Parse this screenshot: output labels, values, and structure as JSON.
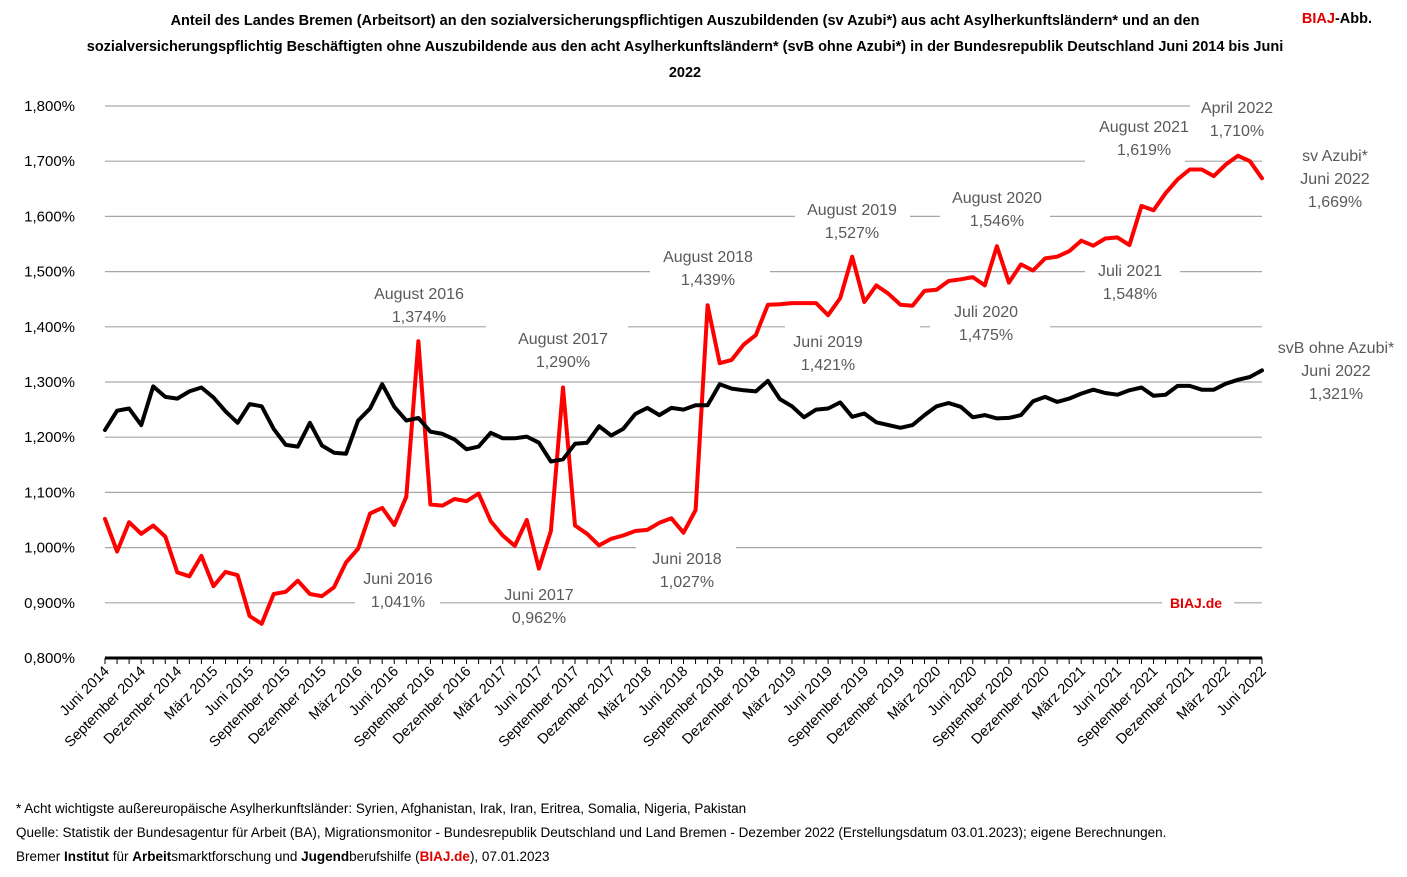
{
  "title": "Anteil des Landes Bremen (Arbeitsort) an den sozialversicherungspflichtigen Auszubildenden (sv Azubi*) aus acht Asylherkunftsländern* und an den sozialversicherungspflichtig Beschäftigten ohne Auszubildende aus den acht Asylherkunftsländern* (svB ohne Azubi*) in der Bundesrepublik Deutschland Juni 2014 bis Juni 2022",
  "brand": {
    "red": "BIAJ",
    "rest": "-Abb."
  },
  "watermark": "BIAJ.de",
  "footnotes": {
    "line1": "* Acht wichtigste außereuropäische Asylherkunftsländer: Syrien, Afghanistan, Irak, Iran, Eritrea, Somalia, Nigeria, Pakistan",
    "line2": "Quelle: Statistik der Bundesagentur für Arbeit (BA), Migrationsmonitor - Bundesrepublik Deutschland und Land Bremen - Dezember 2022 (Erstellungsdatum 03.01.2023); eigene Berechnungen.",
    "line3_parts": [
      "Bremer ",
      "Institut",
      " für ",
      "Arbeit",
      "smarktforschung und ",
      "Jugend",
      "berufshilfe (",
      "BIAJ.de",
      "), 07.01.2023"
    ]
  },
  "colors": {
    "azubi": "#ff0000",
    "svb": "#000000",
    "grid": "#a6a6a6",
    "brand": "#e00000"
  },
  "chart_data": {
    "type": "line",
    "ylim": [
      0.8,
      1.8
    ],
    "yticks": [
      "0,800%",
      "0,900%",
      "1,000%",
      "1,100%",
      "1,200%",
      "1,300%",
      "1,400%",
      "1,500%",
      "1,600%",
      "1,700%",
      "1,800%"
    ],
    "x_labels": [
      "Juni 2014",
      "September 2014",
      "Dezember 2014",
      "März 2015",
      "Juni 2015",
      "September 2015",
      "Dezember 2015",
      "März 2016",
      "Juni 2016",
      "September 2016",
      "Dezember 2016",
      "März 2017",
      "Juni 2017",
      "September 2017",
      "Dezember 2017",
      "März 2018",
      "Juni 2018",
      "September 2018",
      "Dezember 2018",
      "März 2019",
      "Juni 2019",
      "September 2019",
      "Dezember 2019",
      "März 2020",
      "Juni 2020",
      "September 2020",
      "Dezember 2020",
      "März 2021",
      "Juni 2021",
      "September 2021",
      "Dezember 2021",
      "März 2022",
      "Juni 2022"
    ],
    "series": [
      {
        "name": "sv Azubi*",
        "color": "#ff0000",
        "values": [
          1.052,
          0.993,
          1.046,
          1.025,
          1.04,
          1.02,
          0.955,
          0.948,
          0.985,
          0.93,
          0.956,
          0.95,
          0.876,
          0.862,
          0.916,
          0.92,
          0.94,
          0.916,
          0.912,
          0.928,
          0.973,
          0.998,
          1.062,
          1.072,
          1.041,
          1.092,
          1.374,
          1.078,
          1.076,
          1.088,
          1.084,
          1.098,
          1.048,
          1.022,
          1.003,
          1.05,
          0.962,
          1.03,
          1.29,
          1.04,
          1.025,
          1.004,
          1.016,
          1.022,
          1.03,
          1.032,
          1.045,
          1.053,
          1.027,
          1.068,
          1.439,
          1.334,
          1.34,
          1.368,
          1.385,
          1.44,
          1.441,
          1.443,
          1.443,
          1.443,
          1.421,
          1.452,
          1.527,
          1.445,
          1.475,
          1.46,
          1.44,
          1.438,
          1.465,
          1.467,
          1.483,
          1.486,
          1.49,
          1.475,
          1.546,
          1.48,
          1.513,
          1.502,
          1.524,
          1.527,
          1.537,
          1.556,
          1.547,
          1.56,
          1.562,
          1.548,
          1.619,
          1.611,
          1.642,
          1.667,
          1.685,
          1.685,
          1.673,
          1.694,
          1.71,
          1.7,
          1.669
        ]
      },
      {
        "name": "svB ohne Azubi*",
        "color": "#000000",
        "values": [
          1.213,
          1.248,
          1.252,
          1.222,
          1.292,
          1.273,
          1.27,
          1.283,
          1.29,
          1.272,
          1.247,
          1.226,
          1.26,
          1.256,
          1.215,
          1.186,
          1.183,
          1.226,
          1.185,
          1.172,
          1.17,
          1.23,
          1.252,
          1.296,
          1.255,
          1.23,
          1.235,
          1.21,
          1.206,
          1.196,
          1.178,
          1.183,
          1.208,
          1.198,
          1.198,
          1.201,
          1.19,
          1.156,
          1.16,
          1.188,
          1.19,
          1.22,
          1.203,
          1.215,
          1.242,
          1.253,
          1.24,
          1.253,
          1.25,
          1.258,
          1.258,
          1.296,
          1.288,
          1.285,
          1.283,
          1.302,
          1.269,
          1.256,
          1.236,
          1.25,
          1.252,
          1.263,
          1.237,
          1.243,
          1.227,
          1.222,
          1.217,
          1.222,
          1.24,
          1.256,
          1.262,
          1.255,
          1.236,
          1.24,
          1.234,
          1.235,
          1.24,
          1.265,
          1.273,
          1.264,
          1.27,
          1.279,
          1.286,
          1.28,
          1.277,
          1.285,
          1.29,
          1.275,
          1.277,
          1.293,
          1.293,
          1.286,
          1.286,
          1.297,
          1.304,
          1.309,
          1.321
        ]
      }
    ],
    "annotations": [
      {
        "label": "August 2016",
        "value": "1,374%"
      },
      {
        "label": "August 2017",
        "value": "1,290%"
      },
      {
        "label": "August 2018",
        "value": "1,439%"
      },
      {
        "label": "August 2019",
        "value": "1,527%"
      },
      {
        "label": "August 2020",
        "value": "1,546%"
      },
      {
        "label": "August 2021",
        "value": "1,619%"
      },
      {
        "label": "April 2022",
        "value": "1,710%"
      },
      {
        "label": "Juni 2016",
        "value": "1,041%"
      },
      {
        "label": "Juni 2017",
        "value": "0,962%"
      },
      {
        "label": "Juni 2018",
        "value": "1,027%"
      },
      {
        "label": "Juni 2019",
        "value": "1,421%"
      },
      {
        "label": "Juli 2020",
        "value": "1,475%"
      },
      {
        "label": "Juli 2021",
        "value": "1,548%"
      }
    ],
    "end_labels": [
      {
        "name": "sv Azubi*",
        "date": "Juni 2022",
        "value": "1,669%"
      },
      {
        "name": "svB ohne Azubi*",
        "date": "Juni 2022",
        "value": "1,321%"
      }
    ]
  }
}
